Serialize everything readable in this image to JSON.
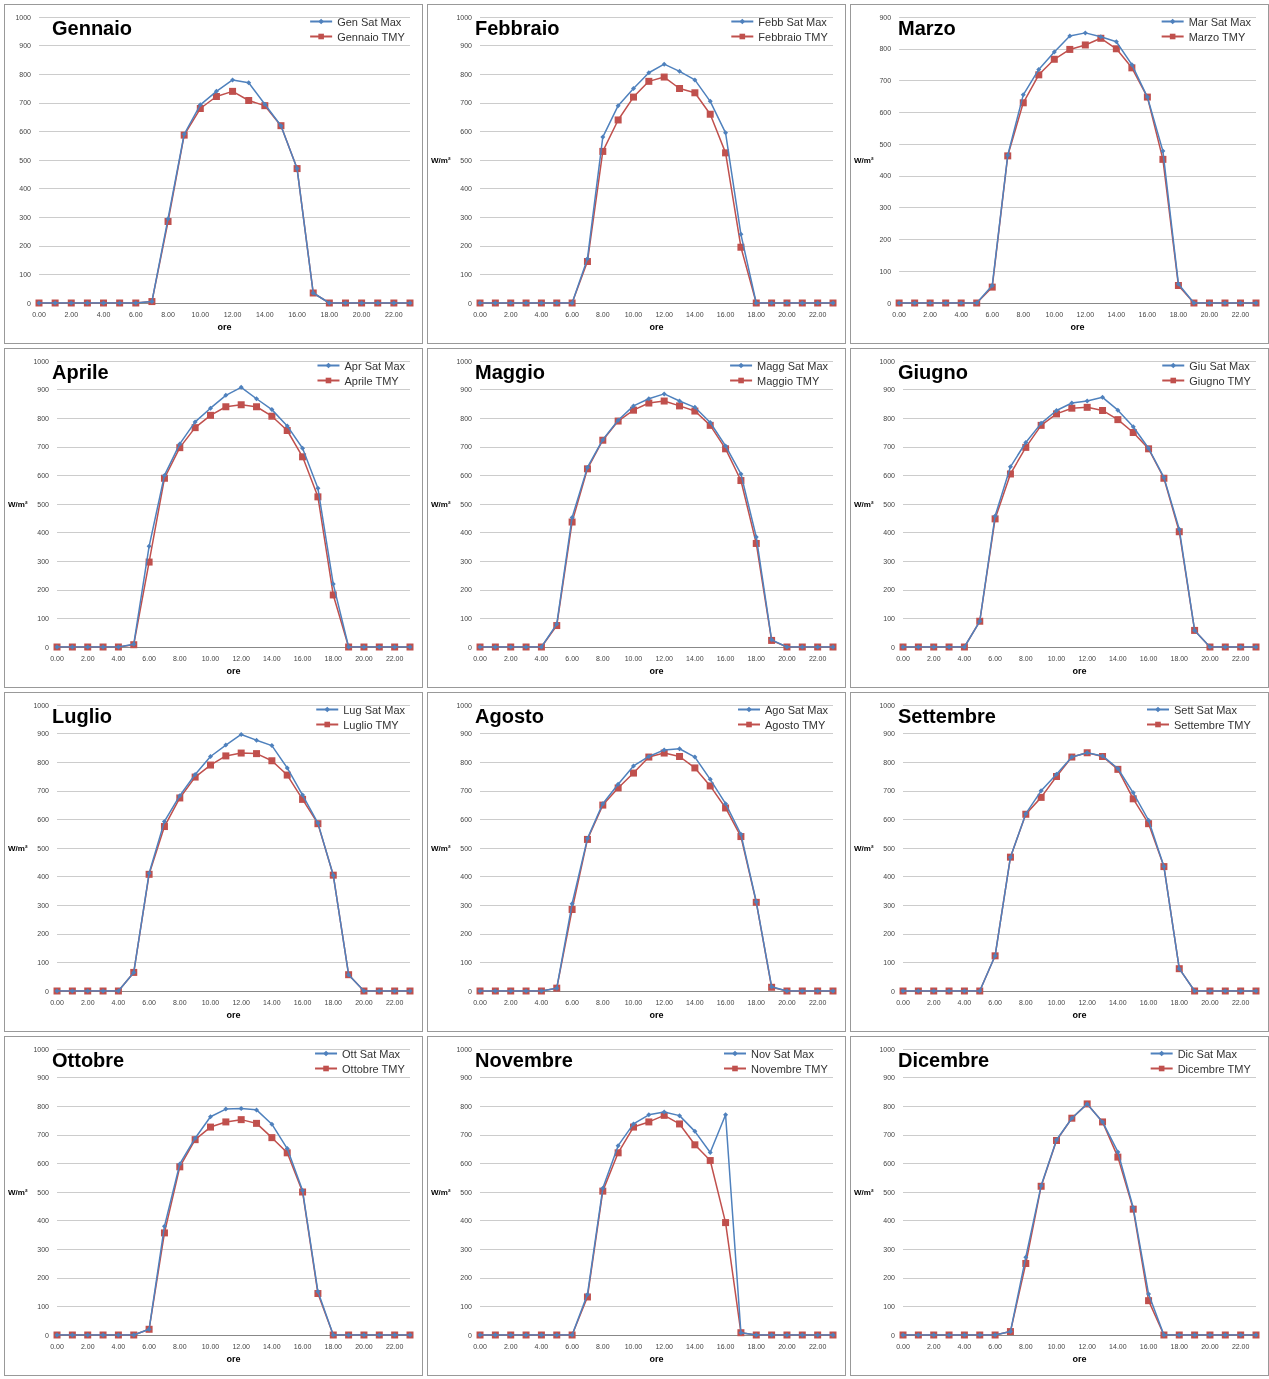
{
  "chart_data": [
    {
      "type": "line",
      "title": "Gennaio",
      "xlabel": "ore",
      "categories": [
        "0.00",
        null,
        "2.00",
        null,
        "4.00",
        null,
        "6.00",
        null,
        "8.00",
        null,
        "10.00",
        null,
        "12.00",
        null,
        "14.00",
        null,
        "16.00",
        null,
        "18.00",
        null,
        "20.00",
        null,
        "22.00",
        null
      ],
      "ylim": [
        0,
        1000
      ],
      "yticks": [
        0,
        100,
        200,
        300,
        400,
        500,
        600,
        700,
        800,
        900,
        1000
      ],
      "grid": "y",
      "legend": "top right",
      "series": [
        {
          "name": "Gen Sat Max",
          "color": "#4f81bd",
          "marker": "diamond",
          "values": [
            0,
            0,
            0,
            0,
            0,
            0,
            0,
            5,
            295,
            590,
            693,
            740,
            780,
            770,
            695,
            620,
            470,
            35,
            0,
            0,
            0,
            0,
            0,
            0
          ]
        },
        {
          "name": "Gennaio TMY",
          "color": "#c0504d",
          "marker": "square",
          "values": [
            0,
            0,
            0,
            0,
            0,
            0,
            0,
            5,
            285,
            587,
            680,
            722,
            740,
            708,
            690,
            620,
            470,
            35,
            0,
            0,
            0,
            0,
            0,
            0
          ]
        }
      ]
    },
    {
      "type": "line",
      "title": "Febbraio",
      "xlabel": "ore",
      "ylabel": "W/m²",
      "categories": [
        "0.00",
        null,
        "2.00",
        null,
        "4.00",
        null,
        "6.00",
        null,
        "8.00",
        null,
        "10.00",
        null,
        "12.00",
        null,
        "14.00",
        null,
        "16.00",
        null,
        "18.00",
        null,
        "20.00",
        null,
        "22.00",
        null
      ],
      "ylim": [
        0,
        1000
      ],
      "yticks": [
        0,
        100,
        200,
        300,
        400,
        500,
        600,
        700,
        800,
        900,
        1000
      ],
      "grid": "y",
      "legend": "top right",
      "series": [
        {
          "name": "Febb Sat Max",
          "color": "#4f81bd",
          "marker": "diamond",
          "values": [
            0,
            0,
            0,
            0,
            0,
            0,
            0,
            155,
            580,
            690,
            750,
            805,
            835,
            810,
            780,
            705,
            595,
            240,
            0,
            0,
            0,
            0,
            0,
            0
          ]
        },
        {
          "name": "Febbraio TMY",
          "color": "#c0504d",
          "marker": "square",
          "values": [
            0,
            0,
            0,
            0,
            0,
            0,
            0,
            145,
            530,
            640,
            720,
            775,
            790,
            750,
            735,
            660,
            525,
            195,
            0,
            0,
            0,
            0,
            0,
            0
          ]
        }
      ]
    },
    {
      "type": "line",
      "title": "Marzo",
      "xlabel": "ore",
      "ylabel": "W/m²",
      "categories": [
        "0.00",
        null,
        "2.00",
        null,
        "4.00",
        null,
        "6.00",
        null,
        "8.00",
        null,
        "10.00",
        null,
        "12.00",
        null,
        "14.00",
        null,
        "16.00",
        null,
        "18.00",
        null,
        "20.00",
        null,
        "22.00",
        null
      ],
      "ylim": [
        0,
        900
      ],
      "yticks": [
        0,
        100,
        200,
        300,
        400,
        500,
        600,
        700,
        800,
        900
      ],
      "grid": "y",
      "legend": "top right",
      "series": [
        {
          "name": "Mar Sat Max",
          "color": "#4f81bd",
          "marker": "diamond",
          "values": [
            0,
            0,
            0,
            0,
            0,
            0,
            55,
            465,
            655,
            735,
            790,
            840,
            850,
            838,
            822,
            750,
            648,
            478,
            60,
            0,
            0,
            0,
            0,
            0
          ]
        },
        {
          "name": "Marzo TMY",
          "color": "#c0504d",
          "marker": "square",
          "values": [
            0,
            0,
            0,
            0,
            0,
            0,
            50,
            463,
            630,
            718,
            767,
            798,
            812,
            833,
            800,
            740,
            648,
            452,
            55,
            0,
            0,
            0,
            0,
            0
          ]
        }
      ]
    },
    {
      "type": "line",
      "title": "Aprile",
      "xlabel": "ore",
      "ylabel": "W/m²",
      "categories": [
        "0.00",
        null,
        "2.00",
        null,
        "4.00",
        null,
        "6.00",
        null,
        "8.00",
        null,
        "10.00",
        null,
        "12.00",
        null,
        "14.00",
        null,
        "16.00",
        null,
        "18.00",
        null,
        "20.00",
        null,
        "22.00",
        null
      ],
      "ylim": [
        0,
        1000
      ],
      "yticks": [
        0,
        100,
        200,
        300,
        400,
        500,
        600,
        700,
        800,
        900,
        1000
      ],
      "grid": "y",
      "legend": "top right",
      "series": [
        {
          "name": "Apr Sat Max",
          "color": "#4f81bd",
          "marker": "diamond",
          "values": [
            0,
            0,
            0,
            0,
            0,
            10,
            352,
            600,
            710,
            787,
            835,
            880,
            908,
            868,
            830,
            773,
            695,
            555,
            220,
            0,
            0,
            0,
            0,
            0
          ]
        },
        {
          "name": "Aprile TMY",
          "color": "#c0504d",
          "marker": "square",
          "values": [
            0,
            0,
            0,
            0,
            0,
            8,
            297,
            590,
            697,
            767,
            810,
            840,
            847,
            840,
            807,
            757,
            665,
            525,
            182,
            0,
            0,
            0,
            0,
            0
          ]
        }
      ]
    },
    {
      "type": "line",
      "title": "Maggio",
      "xlabel": "ore",
      "ylabel": "W/m²",
      "categories": [
        "0.00",
        null,
        "2.00",
        null,
        "4.00",
        null,
        "6.00",
        null,
        "8.00",
        null,
        "10.00",
        null,
        "12.00",
        null,
        "14.00",
        null,
        "16.00",
        null,
        "18.00",
        null,
        "20.00",
        null,
        "22.00",
        null
      ],
      "ylim": [
        0,
        1000
      ],
      "yticks": [
        0,
        100,
        200,
        300,
        400,
        500,
        600,
        700,
        800,
        900,
        1000
      ],
      "grid": "y",
      "legend": "top right",
      "series": [
        {
          "name": "Magg Sat Max",
          "color": "#4f81bd",
          "marker": "diamond",
          "values": [
            0,
            0,
            0,
            0,
            0,
            80,
            453,
            628,
            725,
            793,
            843,
            868,
            885,
            860,
            838,
            785,
            703,
            605,
            385,
            25,
            0,
            0,
            0,
            0
          ]
        },
        {
          "name": "Maggio TMY",
          "color": "#c0504d",
          "marker": "square",
          "values": [
            0,
            0,
            0,
            0,
            0,
            75,
            437,
            623,
            723,
            790,
            828,
            853,
            860,
            843,
            825,
            775,
            693,
            582,
            362,
            23,
            0,
            0,
            0,
            0
          ]
        }
      ]
    },
    {
      "type": "line",
      "title": "Giugno",
      "xlabel": "ore",
      "ylabel": "W/m²",
      "categories": [
        "0.00",
        null,
        "2.00",
        null,
        "4.00",
        null,
        "6.00",
        null,
        "8.00",
        null,
        "10.00",
        null,
        "12.00",
        null,
        "14.00",
        null,
        "16.00",
        null,
        "18.00",
        null,
        "20.00",
        null,
        "22.00",
        null
      ],
      "ylim": [
        0,
        1000
      ],
      "yticks": [
        0,
        100,
        200,
        300,
        400,
        500,
        600,
        700,
        800,
        900,
        1000
      ],
      "grid": "y",
      "legend": "top right",
      "series": [
        {
          "name": "Giu Sat Max",
          "color": "#4f81bd",
          "marker": "diamond",
          "values": [
            0,
            0,
            0,
            0,
            0,
            90,
            458,
            630,
            715,
            782,
            827,
            853,
            860,
            873,
            828,
            770,
            695,
            593,
            412,
            58,
            0,
            0,
            0,
            0
          ]
        },
        {
          "name": "Giugno TMY",
          "color": "#c0504d",
          "marker": "square",
          "values": [
            0,
            0,
            0,
            0,
            0,
            90,
            448,
            605,
            698,
            775,
            815,
            835,
            838,
            827,
            795,
            750,
            693,
            590,
            403,
            58,
            0,
            0,
            0,
            0
          ]
        }
      ]
    },
    {
      "type": "line",
      "title": "Luglio",
      "xlabel": "ore",
      "ylabel": "W/m²",
      "categories": [
        "0.00",
        null,
        "2.00",
        null,
        "4.00",
        null,
        "6.00",
        null,
        "8.00",
        null,
        "10.00",
        null,
        "12.00",
        null,
        "14.00",
        null,
        "16.00",
        null,
        "18.00",
        null,
        "20.00",
        null,
        "22.00",
        null
      ],
      "ylim": [
        0,
        1000
      ],
      "yticks": [
        0,
        100,
        200,
        300,
        400,
        500,
        600,
        700,
        800,
        900,
        1000
      ],
      "grid": "y",
      "legend": "top right",
      "series": [
        {
          "name": "Lug Sat Max",
          "color": "#4f81bd",
          "marker": "diamond",
          "values": [
            0,
            0,
            0,
            0,
            0,
            65,
            412,
            593,
            683,
            757,
            820,
            860,
            897,
            877,
            858,
            780,
            685,
            587,
            405,
            57,
            0,
            0,
            0,
            0
          ]
        },
        {
          "name": "Luglio TMY",
          "color": "#c0504d",
          "marker": "square",
          "values": [
            0,
            0,
            0,
            0,
            0,
            65,
            408,
            575,
            675,
            748,
            790,
            822,
            832,
            830,
            805,
            755,
            670,
            585,
            405,
            57,
            0,
            0,
            0,
            0
          ]
        }
      ]
    },
    {
      "type": "line",
      "title": "Agosto",
      "xlabel": "ore",
      "ylabel": "W/m²",
      "categories": [
        "0.00",
        null,
        "2.00",
        null,
        "4.00",
        null,
        "6.00",
        null,
        "8.00",
        null,
        "10.00",
        null,
        "12.00",
        null,
        "14.00",
        null,
        "16.00",
        null,
        "18.00",
        null,
        "20.00",
        null,
        "22.00",
        null
      ],
      "ylim": [
        0,
        1000
      ],
      "yticks": [
        0,
        100,
        200,
        300,
        400,
        500,
        600,
        700,
        800,
        900,
        1000
      ],
      "grid": "y",
      "legend": "top right",
      "series": [
        {
          "name": "Ago Sat Max",
          "color": "#4f81bd",
          "marker": "diamond",
          "values": [
            0,
            0,
            0,
            0,
            0,
            10,
            305,
            533,
            655,
            723,
            787,
            820,
            843,
            847,
            818,
            740,
            655,
            548,
            312,
            15,
            0,
            0,
            0,
            0
          ]
        },
        {
          "name": "Agosto TMY",
          "color": "#c0504d",
          "marker": "square",
          "values": [
            0,
            0,
            0,
            0,
            0,
            10,
            285,
            530,
            650,
            710,
            762,
            818,
            832,
            820,
            780,
            717,
            640,
            540,
            310,
            13,
            0,
            0,
            0,
            0
          ]
        }
      ]
    },
    {
      "type": "line",
      "title": "Settembre",
      "xlabel": "ore",
      "ylabel": "W/m²",
      "categories": [
        "0.00",
        null,
        "2.00",
        null,
        "4.00",
        null,
        "6.00",
        null,
        "8.00",
        null,
        "10.00",
        null,
        "12.00",
        null,
        "14.00",
        null,
        "16.00",
        null,
        "18.00",
        null,
        "20.00",
        null,
        "22.00",
        null
      ],
      "ylim": [
        0,
        1000
      ],
      "yticks": [
        0,
        100,
        200,
        300,
        400,
        500,
        600,
        700,
        800,
        900,
        1000
      ],
      "grid": "y",
      "legend": "top right",
      "series": [
        {
          "name": "Sett Sat Max",
          "color": "#4f81bd",
          "marker": "diamond",
          "values": [
            0,
            0,
            0,
            0,
            0,
            0,
            123,
            468,
            620,
            700,
            758,
            818,
            833,
            822,
            778,
            693,
            597,
            435,
            78,
            0,
            0,
            0,
            0,
            0
          ]
        },
        {
          "name": "Settembre TMY",
          "color": "#c0504d",
          "marker": "square",
          "values": [
            0,
            0,
            0,
            0,
            0,
            0,
            123,
            468,
            618,
            677,
            750,
            818,
            833,
            820,
            775,
            672,
            585,
            435,
            78,
            0,
            0,
            0,
            0,
            0
          ]
        }
      ]
    },
    {
      "type": "line",
      "title": "Ottobre",
      "xlabel": "ore",
      "ylabel": "W/m²",
      "categories": [
        "0.00",
        null,
        "2.00",
        null,
        "4.00",
        null,
        "6.00",
        null,
        "8.00",
        null,
        "10.00",
        null,
        "12.00",
        null,
        "14.00",
        null,
        "16.00",
        null,
        "18.00",
        null,
        "20.00",
        null,
        "22.00",
        null
      ],
      "ylim": [
        0,
        1000
      ],
      "yticks": [
        0,
        100,
        200,
        300,
        400,
        500,
        600,
        700,
        800,
        900,
        1000
      ],
      "grid": "y",
      "legend": "top right",
      "series": [
        {
          "name": "Ott Sat Max",
          "color": "#4f81bd",
          "marker": "diamond",
          "values": [
            0,
            0,
            0,
            0,
            0,
            0,
            20,
            380,
            598,
            688,
            763,
            790,
            792,
            787,
            737,
            652,
            505,
            152,
            0,
            0,
            0,
            0,
            0,
            0
          ]
        },
        {
          "name": "Ottobre TMY",
          "color": "#c0504d",
          "marker": "square",
          "values": [
            0,
            0,
            0,
            0,
            0,
            0,
            20,
            357,
            588,
            683,
            727,
            745,
            753,
            740,
            690,
            637,
            500,
            145,
            0,
            0,
            0,
            0,
            0,
            0
          ]
        }
      ]
    },
    {
      "type": "line",
      "title": "Novembre",
      "xlabel": "ore",
      "ylabel": "W/m²",
      "categories": [
        "0.00",
        null,
        "2.00",
        null,
        "4.00",
        null,
        "6.00",
        null,
        "8.00",
        null,
        "10.00",
        null,
        "12.00",
        null,
        "14.00",
        null,
        "16.00",
        null,
        "18.00",
        null,
        "20.00",
        null,
        "22.00",
        null
      ],
      "ylim": [
        0,
        1000
      ],
      "yticks": [
        0,
        100,
        200,
        300,
        400,
        500,
        600,
        700,
        800,
        900,
        1000
      ],
      "grid": "y",
      "legend": "top right",
      "series": [
        {
          "name": "Nov Sat Max",
          "color": "#4f81bd",
          "marker": "diamond",
          "values": [
            0,
            0,
            0,
            0,
            0,
            0,
            0,
            142,
            513,
            662,
            738,
            770,
            780,
            767,
            712,
            638,
            770,
            8,
            0,
            0,
            0,
            0,
            0,
            0
          ]
        },
        {
          "name": "Novembre TMY",
          "color": "#c0504d",
          "marker": "square",
          "values": [
            0,
            0,
            0,
            0,
            0,
            0,
            0,
            133,
            503,
            637,
            727,
            745,
            768,
            738,
            665,
            610,
            393,
            8,
            0,
            0,
            0,
            0,
            0,
            0
          ]
        }
      ]
    },
    {
      "type": "line",
      "title": "Dicembre",
      "xlabel": "ore",
      "ylabel": "W/m²",
      "categories": [
        "0.00",
        null,
        "2.00",
        null,
        "4.00",
        null,
        "6.00",
        null,
        "8.00",
        null,
        "10.00",
        null,
        "12.00",
        null,
        "14.00",
        null,
        "16.00",
        null,
        "18.00",
        null,
        "20.00",
        null,
        "22.00",
        null
      ],
      "ylim": [
        0,
        1000
      ],
      "yticks": [
        0,
        100,
        200,
        300,
        400,
        500,
        600,
        700,
        800,
        900,
        1000
      ],
      "grid": "y",
      "legend": "top right",
      "series": [
        {
          "name": "Dic Sat Max",
          "color": "#4f81bd",
          "marker": "diamond",
          "values": [
            0,
            0,
            0,
            0,
            0,
            0,
            0,
            12,
            272,
            522,
            682,
            758,
            808,
            745,
            640,
            445,
            143,
            0,
            0,
            0,
            0,
            0,
            0,
            0
          ]
        },
        {
          "name": "Dicembre TMY",
          "color": "#c0504d",
          "marker": "square",
          "values": [
            0,
            0,
            0,
            0,
            0,
            0,
            0,
            12,
            250,
            520,
            680,
            758,
            808,
            745,
            622,
            440,
            120,
            0,
            0,
            0,
            0,
            0,
            0,
            0
          ]
        }
      ]
    }
  ]
}
